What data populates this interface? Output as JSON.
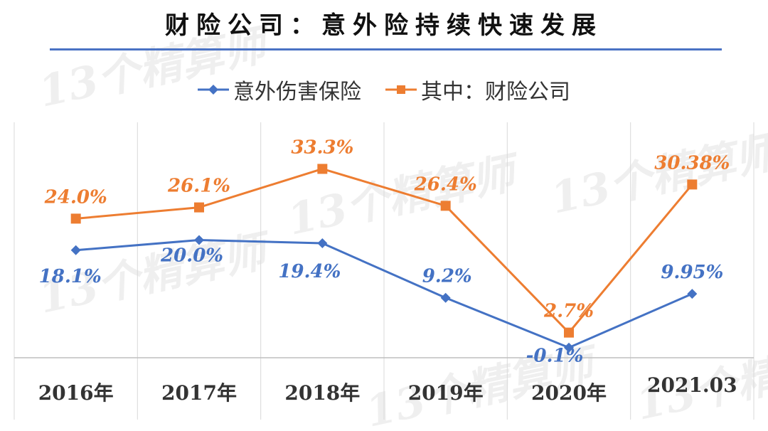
{
  "title": "财险公司：意外险持续快速发展",
  "watermark": "13个精算师",
  "colors": {
    "blue": "#4472c4",
    "orange": "#ed7d31",
    "grid": "#d9d9d9",
    "rule": "#4a72c4"
  },
  "chart_data": {
    "type": "line",
    "categories": [
      "2016年",
      "2017年",
      "2018年",
      "2019年",
      "2020年",
      "2021.03"
    ],
    "ylim": [
      -2,
      42
    ],
    "grid": "vertical",
    "legend_position": "top",
    "series": [
      {
        "name": "意外伤害保险",
        "color": "#4472c4",
        "values": [
          18.1,
          20.0,
          19.4,
          9.2,
          -0.1,
          9.95
        ],
        "labels": [
          "18.1%",
          "20.0%",
          "19.4%",
          "9.2%",
          "-0.1%",
          "9.95%"
        ]
      },
      {
        "name": "其中：财险公司",
        "color": "#ed7d31",
        "values": [
          24.0,
          26.1,
          33.3,
          26.4,
          2.7,
          30.38
        ],
        "labels": [
          "24.0%",
          "26.1%",
          "33.3%",
          "26.4%",
          "2.7%",
          "30.38%"
        ]
      }
    ]
  }
}
